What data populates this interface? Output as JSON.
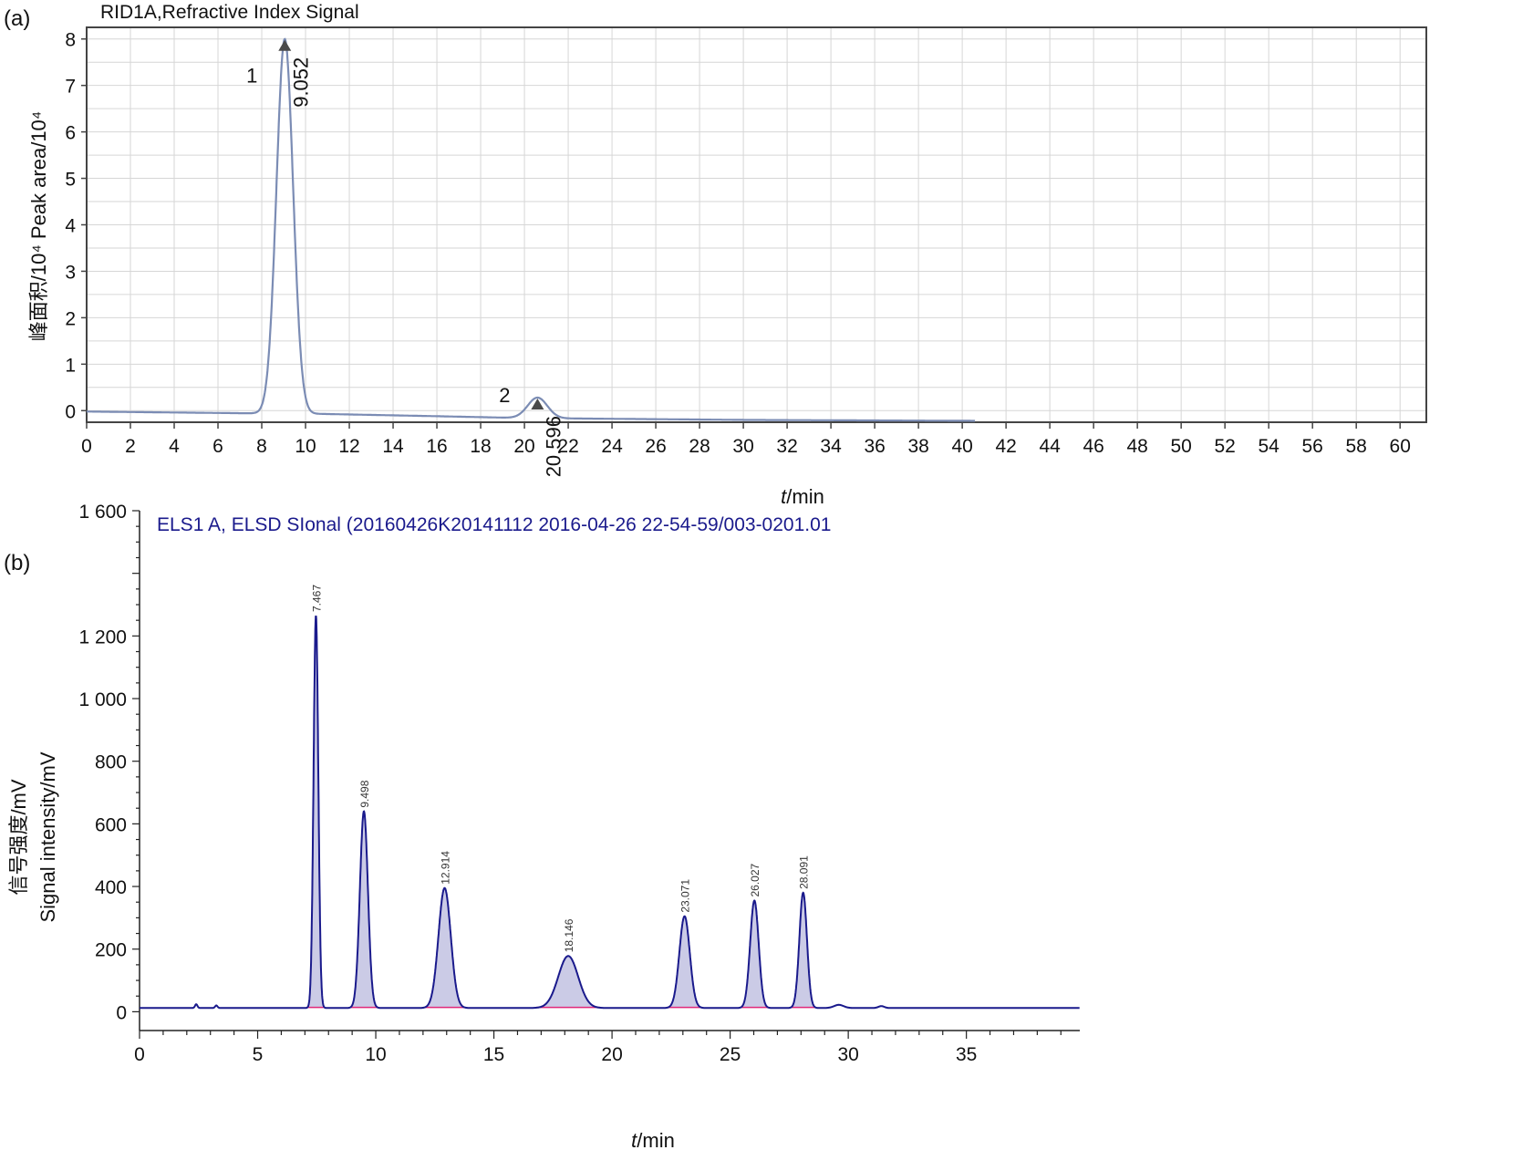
{
  "panel_a": {
    "panel_label": "(a)",
    "title": "RID1A,Refractive Index Signal",
    "ylabel": "峰面积/10⁴ Peak area/10⁴",
    "xlabel_italic": "t",
    "xlabel_rest": "/min",
    "colors": {
      "trace": "#7b8cb4",
      "frame": "#444444",
      "grid": "#d6d6d6",
      "marker": "#4a4a4a"
    }
  },
  "panel_b": {
    "panel_label": "(b)",
    "title": "ELS1 A, ELSD SIonal (20160426K20141112 2016-04-26 22-54-59/003-0201.01",
    "ylabel_cn": "信号强度/mV",
    "ylabel_en": "Signal intensity/mV",
    "xlabel_italic": "t",
    "xlabel_rest": "/min",
    "colors": {
      "trace": "#1a1a8c",
      "fill": "#8c8cc8",
      "baseline": "#e0287a",
      "title": "#1a1a8c"
    }
  },
  "chart_data": [
    {
      "type": "line",
      "title": "RID1A,Refractive Index Signal",
      "xlabel": "t/min",
      "ylabel": "峰面积/10⁴ Peak area/10⁴",
      "xlim": [
        0,
        61.2
      ],
      "ylim": [
        -0.25,
        8.25
      ],
      "x_ticks": [
        0,
        2,
        4,
        6,
        8,
        10,
        12,
        14,
        16,
        18,
        20,
        22,
        24,
        26,
        28,
        30,
        32,
        34,
        36,
        38,
        40,
        42,
        44,
        46,
        48,
        50,
        52,
        54,
        56,
        58,
        60
      ],
      "y_ticks": [
        0,
        1,
        2,
        3,
        4,
        5,
        6,
        7,
        8
      ],
      "grid": true,
      "baseline": [
        [
          0,
          -0.02
        ],
        [
          8,
          -0.06
        ],
        [
          9.6,
          -0.06
        ],
        [
          16,
          -0.12
        ],
        [
          20,
          -0.16
        ],
        [
          30,
          -0.2
        ],
        [
          40.6,
          -0.22
        ]
      ],
      "peaks": [
        {
          "label": "1",
          "rt_label": "9.052",
          "x": 9.052,
          "y": 8.0,
          "width": 0.38
        },
        {
          "label": "2",
          "rt_label": "20.596",
          "x": 20.596,
          "y": 0.28,
          "width": 0.45
        }
      ]
    },
    {
      "type": "line",
      "title": "ELS1 A, ELSD SIonal (20160426K20141112 2016-04-26 22-54-59/003-0201.01",
      "xlabel": "t/min",
      "ylabel": "信号强度/mV Signal intensity/mV",
      "xlim": [
        0,
        39.8
      ],
      "ylim": [
        -60,
        1600
      ],
      "x_ticks": [
        0,
        5,
        10,
        15,
        20,
        25,
        30,
        35
      ],
      "y_ticks": [
        0,
        200,
        400,
        600,
        800,
        1000,
        1200,
        1600
      ],
      "y_tick_labels": [
        "0",
        "200",
        "400",
        "600",
        "800",
        "1 000",
        "1 200",
        "1 600"
      ],
      "grid": false,
      "baseline_level": 12,
      "peaks": [
        {
          "rt_label": "7.467",
          "x": 7.467,
          "y": 1265,
          "width": 0.1
        },
        {
          "rt_label": "9.498",
          "x": 9.498,
          "y": 640,
          "width": 0.17
        },
        {
          "rt_label": "12.914",
          "x": 12.914,
          "y": 395,
          "width": 0.26
        },
        {
          "rt_label": "18.146",
          "x": 18.146,
          "y": 178,
          "width": 0.42
        },
        {
          "rt_label": "23.071",
          "x": 23.071,
          "y": 305,
          "width": 0.22
        },
        {
          "rt_label": "26.027",
          "x": 26.027,
          "y": 355,
          "width": 0.18
        },
        {
          "rt_label": "28.091",
          "x": 28.091,
          "y": 380,
          "width": 0.16
        }
      ]
    }
  ]
}
